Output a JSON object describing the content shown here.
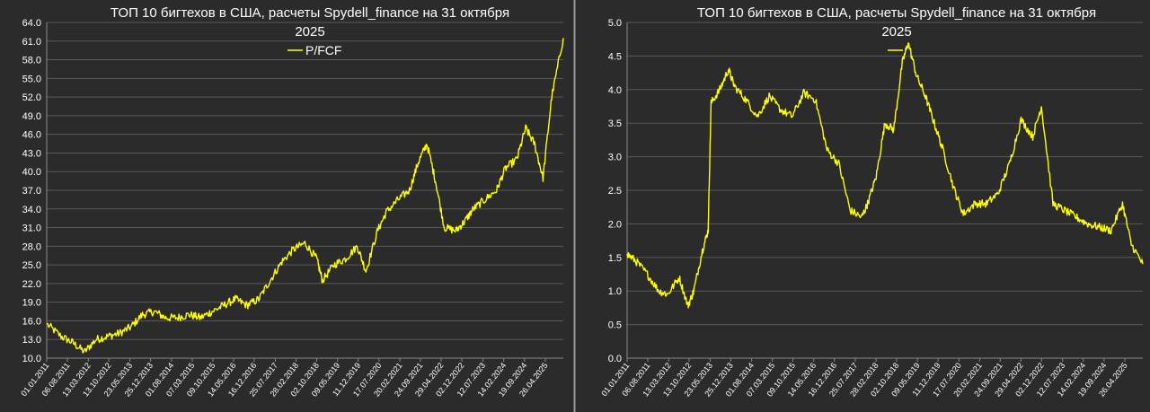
{
  "colors": {
    "background": "#2b2b2b",
    "grid": "#5a5a5a",
    "series": "#ffff00",
    "text": "#ffffff",
    "divider": "#9a9a9a"
  },
  "chart_data": [
    {
      "type": "line",
      "title": "ТОП 10 бигтехов в США, расчеты Spydell_finance на 31 октября 2025",
      "title_lines": [
        "ТОП 10 бигтехов в США, расчеты Spydell_finance на 31 октября",
        "2025"
      ],
      "legend": "top-center",
      "grid": true,
      "ylim": [
        10.0,
        64.0
      ],
      "yticks": [
        "10.0",
        "13.0",
        "16.0",
        "19.0",
        "22.0",
        "25.0",
        "28.0",
        "31.0",
        "34.0",
        "37.0",
        "40.0",
        "43.0",
        "46.0",
        "49.0",
        "52.0",
        "55.0",
        "58.0",
        "61.0",
        "64.0"
      ],
      "xlim": [
        "2011-01-01",
        "2025-10-31"
      ],
      "xticks": [
        "01.01.2011",
        "06.08.2011",
        "13.03.2012",
        "13.10.2012",
        "23.05.2013",
        "25.12.2013",
        "01.08.2014",
        "07.03.2015",
        "09.10.2015",
        "14.05.2016",
        "16.12.2016",
        "25.07.2017",
        "28.02.2018",
        "02.10.2018",
        "09.05.2019",
        "11.12.2019",
        "17.07.2020",
        "20.02.2021",
        "24.09.2021",
        "29.04.2022",
        "02.12.2022",
        "12.07.2023",
        "14.02.2024",
        "19.09.2024",
        "26.04.2025"
      ],
      "series": [
        {
          "name": "P/FCF",
          "x": [
            "2011-01-01",
            "2011-06-01",
            "2011-10-01",
            "2012-02-01",
            "2012-06-01",
            "2012-10-01",
            "2013-02-01",
            "2013-06-01",
            "2013-10-01",
            "2014-02-01",
            "2014-06-01",
            "2014-10-01",
            "2015-02-01",
            "2015-06-01",
            "2015-10-01",
            "2016-02-01",
            "2016-06-01",
            "2016-10-01",
            "2017-02-01",
            "2017-06-01",
            "2017-10-01",
            "2018-02-01",
            "2018-06-01",
            "2018-10-01",
            "2018-12-01",
            "2019-04-01",
            "2019-08-01",
            "2019-12-01",
            "2020-03-01",
            "2020-07-01",
            "2020-10-01",
            "2021-02-01",
            "2021-06-01",
            "2021-09-01",
            "2021-12-01",
            "2022-03-01",
            "2022-06-01",
            "2022-10-01",
            "2023-01-01",
            "2023-04-01",
            "2023-08-01",
            "2023-12-01",
            "2024-03-01",
            "2024-07-01",
            "2024-10-01",
            "2025-01-01",
            "2025-04-01",
            "2025-07-01",
            "2025-10-31"
          ],
          "values": [
            15.5,
            13.5,
            12.5,
            11.0,
            13.0,
            13.5,
            14.0,
            15.0,
            17.0,
            17.5,
            16.5,
            16.5,
            17.0,
            16.5,
            17.5,
            18.5,
            19.5,
            18.5,
            19.5,
            22.5,
            25.5,
            27.5,
            28.5,
            26.0,
            22.5,
            25.0,
            26.0,
            28.0,
            24.0,
            30.5,
            33.5,
            35.5,
            37.0,
            41.5,
            44.5,
            38.5,
            31.0,
            30.5,
            32.0,
            34.0,
            35.5,
            37.0,
            40.5,
            42.0,
            47.0,
            44.5,
            39.0,
            52.0,
            61.5
          ]
        }
      ]
    },
    {
      "type": "line",
      "title": "ТОП 10 бигтехов в США, расчеты Spydell_finance на 31 октября 2025",
      "title_lines": [
        "ТОП 10 бигтехов в США, расчеты Spydell_finance на 31 октября",
        "2025"
      ],
      "legend": "top-center",
      "grid": true,
      "ylim": [
        0.0,
        5.0
      ],
      "yticks": [
        "0.0",
        "0.5",
        "1.0",
        "1.5",
        "2.0",
        "2.5",
        "3.0",
        "3.5",
        "4.0",
        "4.5",
        "5.0"
      ],
      "xlim": [
        "2011-01-01",
        "2025-10-31"
      ],
      "xticks": [
        "01.01.2011",
        "06.08.2011",
        "13.03.2012",
        "13.10.2012",
        "23.05.2013",
        "25.12.2013",
        "01.08.2014",
        "07.03.2015",
        "09.10.2015",
        "14.05.2016",
        "16.12.2016",
        "25.07.2017",
        "28.02.2018",
        "02.10.2018",
        "09.05.2019",
        "11.12.2019",
        "17.07.2020",
        "20.02.2021",
        "24.09.2021",
        "29.04.2022",
        "02.12.2022",
        "12.07.2023",
        "14.02.2024",
        "19.09.2024",
        "26.04.2025"
      ],
      "series": [
        {
          "name": "",
          "x": [
            "2011-01-01",
            "2011-04-01",
            "2011-08-01",
            "2011-12-01",
            "2012-03-01",
            "2012-07-01",
            "2012-10-01",
            "2012-12-01",
            "2013-03-01",
            "2013-05-01",
            "2013-06-01",
            "2013-09-01",
            "2013-12-01",
            "2014-02-01",
            "2014-06-01",
            "2014-10-01",
            "2015-02-01",
            "2015-06-01",
            "2015-10-01",
            "2016-02-01",
            "2016-06-01",
            "2016-10-01",
            "2017-02-01",
            "2017-06-01",
            "2017-10-01",
            "2017-12-01",
            "2018-03-01",
            "2018-06-01",
            "2018-09-01",
            "2018-12-01",
            "2019-02-01",
            "2019-05-01",
            "2019-08-01",
            "2019-11-01",
            "2020-02-01",
            "2020-06-01",
            "2020-09-01",
            "2021-01-01",
            "2021-05-01",
            "2021-09-01",
            "2022-01-01",
            "2022-05-01",
            "2022-09-01",
            "2022-12-01",
            "2023-04-01",
            "2023-08-01",
            "2023-12-01",
            "2024-04-01",
            "2024-08-01",
            "2024-12-01",
            "2025-04-01",
            "2025-07-01",
            "2025-10-31"
          ],
          "values": [
            1.55,
            1.45,
            1.25,
            1.0,
            0.95,
            1.2,
            0.78,
            1.0,
            1.6,
            1.9,
            3.8,
            4.0,
            4.3,
            4.05,
            3.85,
            3.6,
            3.9,
            3.7,
            3.6,
            3.95,
            3.85,
            3.1,
            2.9,
            2.2,
            2.1,
            2.3,
            2.7,
            3.5,
            3.4,
            4.4,
            4.7,
            4.2,
            3.9,
            3.5,
            3.1,
            2.5,
            2.15,
            2.3,
            2.3,
            2.45,
            2.9,
            3.55,
            3.3,
            3.75,
            2.3,
            2.2,
            2.1,
            2.0,
            1.95,
            1.9,
            2.3,
            1.7,
            1.4
          ]
        }
      ]
    }
  ]
}
